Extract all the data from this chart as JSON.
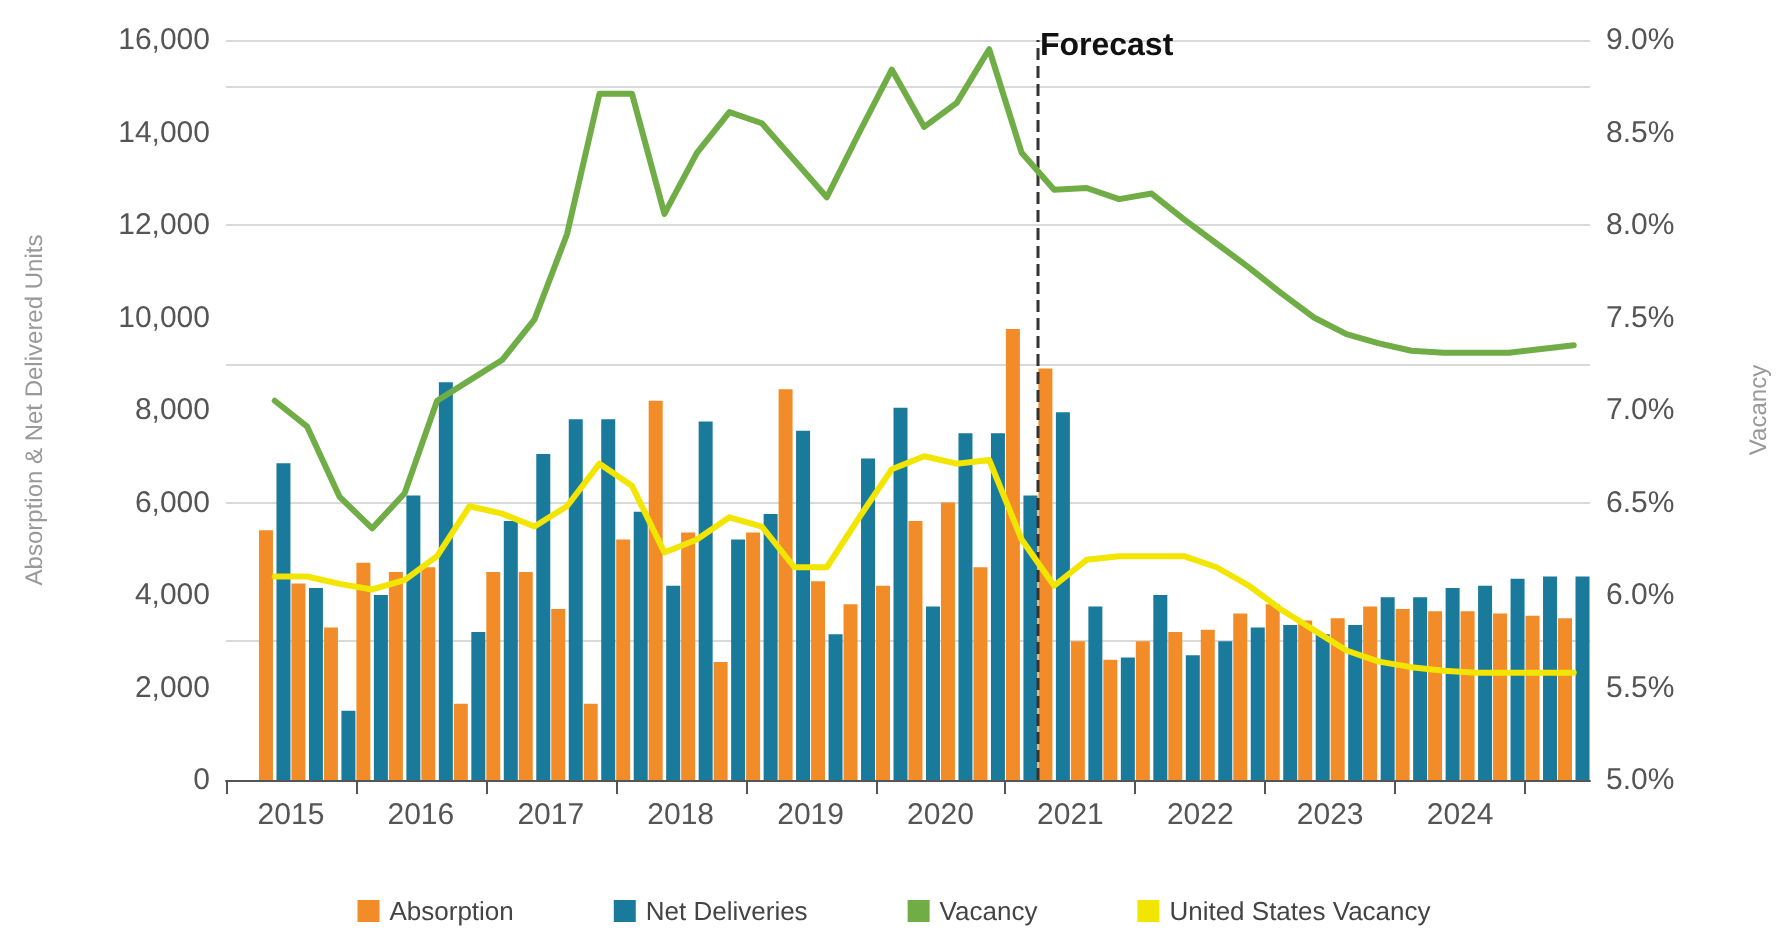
{
  "chart_data": {
    "type": "bar",
    "ylabel": "Absorption & Net Delivered Units",
    "y2label": "Vacancy",
    "x": [
      2015.375,
      2015.625,
      2015.875,
      2016.125,
      2016.375,
      2016.625,
      2016.875,
      2017.125,
      2017.375,
      2017.625,
      2017.875,
      2018.125,
      2018.375,
      2018.625,
      2018.875,
      2019.125,
      2019.375,
      2019.625,
      2019.875,
      2020.125,
      2020.375,
      2020.625,
      2020.875,
      2021.125,
      2021.375,
      2021.625,
      2021.875,
      2022.125,
      2022.375,
      2022.625,
      2022.875,
      2023.125,
      2023.375,
      2023.625,
      2023.875,
      2024.125,
      2024.375,
      2024.625,
      2024.875,
      2025.125,
      2025.375
    ],
    "series": [
      {
        "name": "Absorption",
        "color": "#f28c28",
        "values": [
          5400,
          4250,
          3300,
          4700,
          4500,
          4600,
          1650,
          4500,
          4500,
          3700,
          1650,
          5200,
          8200,
          5350,
          2550,
          5350,
          8450,
          4300,
          3800,
          4200,
          5600,
          6000,
          4600,
          9750,
          8900,
          3000,
          2600,
          3000,
          3200,
          3250,
          3600,
          3800,
          3450,
          3500,
          3750,
          3700,
          3650,
          3650,
          3600,
          3550,
          3500
        ]
      },
      {
        "name": "Net Deliveries",
        "color": "#1a7a9c",
        "values": [
          6850,
          4150,
          1500,
          4000,
          6150,
          8600,
          3200,
          5600,
          7050,
          7800,
          7800,
          5800,
          4200,
          7750,
          5200,
          5750,
          7550,
          3150,
          6950,
          8050,
          3750,
          7500,
          7500,
          6150,
          7950,
          3750,
          2650,
          4000,
          2700,
          3000,
          3300,
          3350,
          3150,
          3350,
          3950,
          3950,
          4150,
          4200,
          4350,
          4400,
          4400
        ]
      },
      {
        "name": "Vacancy",
        "type": "line",
        "axis": "y2",
        "color": "#70ad47",
        "values": [
          7.05,
          6.91,
          6.53,
          6.36,
          6.55,
          7.05,
          7.16,
          7.27,
          7.49,
          7.95,
          8.71,
          8.71,
          8.06,
          8.39,
          8.61,
          8.55,
          8.35,
          8.15,
          8.5,
          8.84,
          8.53,
          8.66,
          8.95,
          8.39,
          8.19,
          8.2,
          8.14,
          8.17,
          8.03,
          7.9,
          7.77,
          7.63,
          7.5,
          7.41,
          7.36,
          7.32,
          7.31,
          7.31,
          7.31,
          7.33,
          7.35
        ]
      },
      {
        "name": "United States Vacancy",
        "type": "line",
        "axis": "y2",
        "color": "#f2e600",
        "values": [
          6.1,
          6.1,
          6.06,
          6.03,
          6.08,
          6.21,
          6.48,
          6.44,
          6.37,
          6.48,
          6.71,
          6.59,
          6.23,
          6.3,
          6.42,
          6.37,
          6.15,
          6.15,
          6.42,
          6.68,
          6.75,
          6.71,
          6.73,
          6.3,
          6.05,
          6.19,
          6.21,
          6.21,
          6.21,
          6.15,
          6.05,
          5.92,
          5.81,
          5.7,
          5.64,
          5.61,
          5.59,
          5.58,
          5.58,
          5.58,
          5.58
        ]
      }
    ],
    "xlim": [
      2015,
      2025.5
    ],
    "xticks": [
      {
        "value": 2015,
        "label": null
      },
      {
        "value": 2015.5,
        "label": "2015"
      },
      {
        "value": 2016,
        "label": null
      },
      {
        "value": 2016.5,
        "label": "2016"
      },
      {
        "value": 2017,
        "label": null
      },
      {
        "value": 2017.5,
        "label": "2017"
      },
      {
        "value": 2018,
        "label": null
      },
      {
        "value": 2018.5,
        "label": "2018"
      },
      {
        "value": 2019,
        "label": null
      },
      {
        "value": 2019.5,
        "label": "2019"
      },
      {
        "value": 2020,
        "label": null
      },
      {
        "value": 2020.5,
        "label": "2020"
      },
      {
        "value": 2021,
        "label": null
      },
      {
        "value": 2021.5,
        "label": "2021"
      },
      {
        "value": 2022,
        "label": null
      },
      {
        "value": 2022.5,
        "label": "2022"
      },
      {
        "value": 2023,
        "label": null
      },
      {
        "value": 2023.5,
        "label": "2023"
      },
      {
        "value": 2024,
        "label": null
      },
      {
        "value": 2024.5,
        "label": "2024"
      },
      {
        "value": 2025,
        "label": null
      }
    ],
    "ylim": [
      0,
      16000
    ],
    "yticks": [
      0,
      {
        "value": 2000,
        "label": "2,000"
      },
      {
        "value": 4000,
        "label": "4,000"
      },
      {
        "value": 6000,
        "label": "6,000"
      },
      {
        "value": 8000,
        "label": "8,000"
      },
      {
        "value": 10000,
        "label": "10,000"
      },
      {
        "value": 12000,
        "label": "12,000"
      },
      {
        "value": 14000,
        "label": "14,000"
      },
      {
        "value": 16000,
        "label": "16,000"
      }
    ],
    "y2lim": [
      5,
      9
    ],
    "y2ticks": [
      {
        "value": 5,
        "label": "5.0%"
      },
      {
        "value": 5.5,
        "label": "5.5%"
      },
      {
        "value": 6,
        "label": "6.0%"
      },
      {
        "value": 6.5,
        "label": "6.5%"
      },
      {
        "value": 7,
        "label": "7.0%"
      },
      {
        "value": 7.5,
        "label": "7.5%"
      },
      {
        "value": 8,
        "label": "8.0%"
      },
      {
        "value": 8.5,
        "label": "8.5%"
      },
      {
        "value": 9,
        "label": "9.0%"
      }
    ],
    "ref_lines": [
      {
        "axis": "x",
        "value": 2021.25,
        "label": "Forecast",
        "color": "#333333",
        "line_style": "dashed"
      }
    ],
    "grid": "y",
    "legend": "bottom",
    "marker": "none",
    "line_style": "solid"
  }
}
